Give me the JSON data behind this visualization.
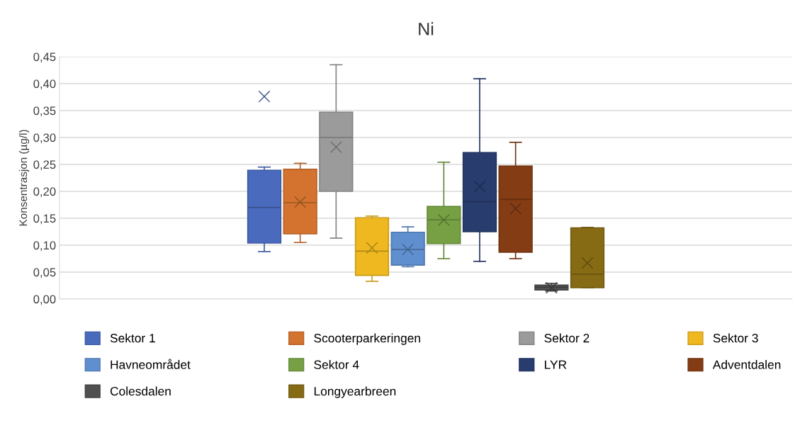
{
  "chart_data": {
    "type": "box",
    "title": "Ni",
    "ylabel": "Konsentrasjon (µg/l)",
    "categories": [
      null
    ],
    "ylim": [
      0,
      0.45
    ],
    "yticks": [
      {
        "value": 0,
        "label": "0,00"
      },
      {
        "value": 0.05,
        "label": "0,05"
      },
      {
        "value": 0.1,
        "label": "0,10"
      },
      {
        "value": 0.15,
        "label": "0,15"
      },
      {
        "value": 0.2,
        "label": "0,20"
      },
      {
        "value": 0.25,
        "label": "0,25"
      },
      {
        "value": 0.3,
        "label": "0,30"
      },
      {
        "value": 0.35,
        "label": "0,35"
      },
      {
        "value": 0.4,
        "label": "0,40"
      },
      {
        "value": 0.45,
        "label": "0,45"
      }
    ],
    "grid": "y",
    "legend": "bottom",
    "marker": "cross",
    "series": [
      {
        "name": "Sektor 1",
        "color": "#4a6bbd",
        "boxes": [
          {
            "low": 0.088,
            "q1": 0.104,
            "median": 0.17,
            "q3": 0.239,
            "high": 0.245,
            "mean": 0.376
          }
        ]
      },
      {
        "name": "Scooterparkeringen",
        "color": "#d4732f",
        "boxes": [
          {
            "low": 0.105,
            "q1": 0.121,
            "median": 0.179,
            "q3": 0.241,
            "high": 0.252,
            "mean": 0.18
          }
        ]
      },
      {
        "name": "Sektor 2",
        "color": "#9b9b9b",
        "boxes": [
          {
            "low": 0.113,
            "q1": 0.2,
            "median": 0.3,
            "q3": 0.347,
            "high": 0.435,
            "mean": 0.282
          }
        ]
      },
      {
        "name": "Sektor 3",
        "color": "#efb820",
        "boxes": [
          {
            "low": 0.033,
            "q1": 0.044,
            "median": 0.089,
            "q3": 0.151,
            "high": 0.154,
            "mean": 0.095
          }
        ]
      },
      {
        "name": "Havneområdet",
        "color": "#5f8fce",
        "boxes": [
          {
            "low": 0.06,
            "q1": 0.063,
            "median": 0.092,
            "q3": 0.124,
            "high": 0.134,
            "mean": 0.092
          }
        ]
      },
      {
        "name": "Sektor 4",
        "color": "#76a043",
        "boxes": [
          {
            "low": 0.075,
            "q1": 0.103,
            "median": 0.147,
            "q3": 0.172,
            "high": 0.254,
            "mean": 0.147
          }
        ]
      },
      {
        "name": "LYR",
        "color": "#283d6e",
        "boxes": [
          {
            "low": 0.07,
            "q1": 0.125,
            "median": 0.181,
            "q3": 0.272,
            "high": 0.409,
            "mean": 0.209
          }
        ]
      },
      {
        "name": "Adventdalen",
        "color": "#843c14",
        "boxes": [
          {
            "low": 0.075,
            "q1": 0.087,
            "median": 0.185,
            "q3": 0.247,
            "high": 0.291,
            "mean": 0.168
          }
        ]
      },
      {
        "name": "Colesdalen",
        "color": "#505050",
        "boxes": [
          {
            "low": 0.015,
            "q1": 0.017,
            "median": 0.022,
            "q3": 0.026,
            "high": 0.029,
            "mean": 0.021
          }
        ]
      },
      {
        "name": "Longyearbreen",
        "color": "#866b14",
        "boxes": [
          {
            "low": 0.021,
            "q1": 0.021,
            "median": 0.046,
            "q3": 0.132,
            "high": 0.133,
            "mean": 0.067
          }
        ]
      }
    ]
  }
}
